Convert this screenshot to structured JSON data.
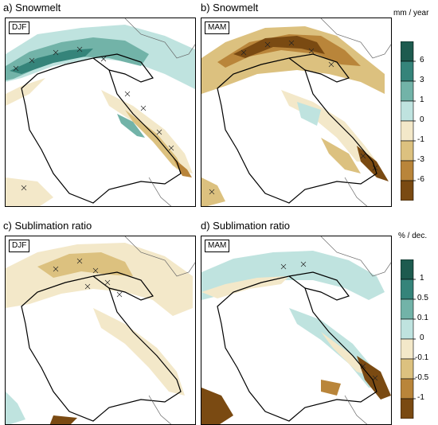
{
  "panels": [
    {
      "id": "a",
      "title": "a) Snowmelt",
      "season": "DJF"
    },
    {
      "id": "b",
      "title": "b) Snowmelt",
      "season": "MAM"
    },
    {
      "id": "c",
      "title": "c) Sublimation ratio",
      "season": "DJF"
    },
    {
      "id": "d",
      "title": "d) Sublimation ratio",
      "season": "MAM"
    }
  ],
  "colorbar_top": {
    "units": "mm / year",
    "labels": [
      "6",
      "3",
      "1",
      "0",
      "-1",
      "-3",
      "-6"
    ],
    "colors": [
      "#1d5b4f",
      "#35847a",
      "#72b3a8",
      "#bfe3df",
      "#f3e8c9",
      "#dcc17f",
      "#b9853a",
      "#7a4a12"
    ]
  },
  "colorbar_bottom": {
    "units": "% / dec.",
    "labels": [
      "1",
      "0.5",
      "0.1",
      "0",
      "-0.1",
      "-0.5",
      "-1"
    ],
    "colors": [
      "#1d5b4f",
      "#35847a",
      "#72b3a8",
      "#bfe3df",
      "#f3e8c9",
      "#dcc17f",
      "#b9853a",
      "#7a4a12"
    ]
  }
}
